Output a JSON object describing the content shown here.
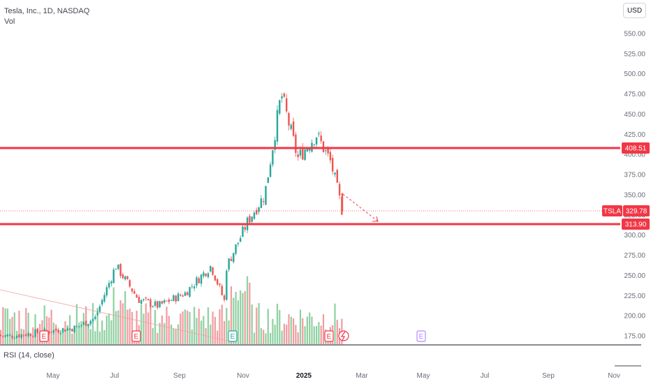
{
  "legend": {
    "symbol_line": "Tesla, Inc., 1D, NASDAQ",
    "volume_label": "Vol"
  },
  "currency_button": "USD",
  "rsi_label": "RSI (14, close)",
  "price_axis": {
    "ticks": [
      "550.00",
      "525.00",
      "500.00",
      "475.00",
      "450.00",
      "425.00",
      "400.00",
      "375.00",
      "350.00",
      "325.00",
      "300.00",
      "275.00",
      "250.00",
      "225.00",
      "200.00",
      "175.00"
    ],
    "tick_values": [
      550,
      525,
      500,
      475,
      450,
      425,
      400,
      375,
      350,
      325,
      300,
      275,
      250,
      225,
      200,
      175
    ]
  },
  "time_axis": {
    "labels": [
      "May",
      "Jul",
      "Sep",
      "Nov",
      "2025",
      "Mar",
      "May",
      "Jul",
      "Sep",
      "Nov"
    ]
  },
  "horizontal_lines": [
    {
      "price": 408.51,
      "label": "408.51",
      "color": "#f23645"
    },
    {
      "price": 313.9,
      "label": "313.90",
      "color": "#f23645"
    }
  ],
  "last_price": {
    "symbol": "TSLA",
    "value": 329.78,
    "label": "329.78",
    "color": "#f23645"
  },
  "earnings_markers": [
    "E",
    "E",
    "E",
    "E",
    "E"
  ],
  "colors": {
    "up": "#26a69a",
    "down": "#ef5350",
    "line": "#f23645",
    "vol_up": "#8fd0a0",
    "vol_down": "#f29ba0"
  },
  "chart_data": {
    "type": "candlestick",
    "price_range": [
      165,
      560
    ],
    "close_path": [
      {
        "date": "2024-04-01",
        "close": 175
      },
      {
        "date": "2024-05-01",
        "close": 180
      },
      {
        "date": "2024-06-01",
        "close": 185
      },
      {
        "date": "2024-06-20",
        "close": 197
      },
      {
        "date": "2024-07-10",
        "close": 262
      },
      {
        "date": "2024-08-01",
        "close": 220
      },
      {
        "date": "2024-08-20",
        "close": 212
      },
      {
        "date": "2024-09-15",
        "close": 228
      },
      {
        "date": "2024-10-10",
        "close": 262
      },
      {
        "date": "2024-10-23",
        "close": 218
      },
      {
        "date": "2024-10-24",
        "close": 258
      },
      {
        "date": "2024-11-07",
        "close": 296
      },
      {
        "date": "2024-11-15",
        "close": 318
      },
      {
        "date": "2024-12-01",
        "close": 350
      },
      {
        "date": "2024-12-17",
        "close": 475
      },
      {
        "date": "2025-01-02",
        "close": 395
      },
      {
        "date": "2025-01-20",
        "close": 425
      },
      {
        "date": "2025-02-03",
        "close": 390
      },
      {
        "date": "2025-02-14",
        "close": 329.78
      }
    ],
    "volume_trend": "declining trendline from left"
  }
}
